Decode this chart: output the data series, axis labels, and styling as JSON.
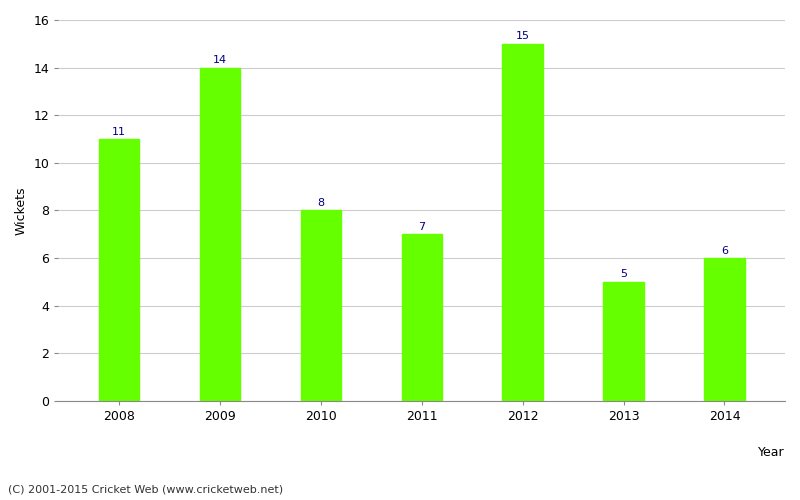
{
  "years": [
    "2008",
    "2009",
    "2010",
    "2011",
    "2012",
    "2013",
    "2014"
  ],
  "wickets": [
    11,
    14,
    8,
    7,
    15,
    5,
    6
  ],
  "bar_color": "#66ff00",
  "bar_edgecolor": "#66ff00",
  "label_color": "#000080",
  "label_fontsize": 8,
  "xlabel": "Year",
  "ylabel": "Wickets",
  "ylim": [
    0,
    16
  ],
  "yticks": [
    0,
    2,
    4,
    6,
    8,
    10,
    12,
    14,
    16
  ],
  "grid_color": "#cccccc",
  "background_color": "#ffffff",
  "footer_text": "(C) 2001-2015 Cricket Web (www.cricketweb.net)",
  "footer_fontsize": 8,
  "footer_color": "#333333",
  "bar_width": 0.4,
  "tick_color": "#888888",
  "axis_color": "#888888"
}
